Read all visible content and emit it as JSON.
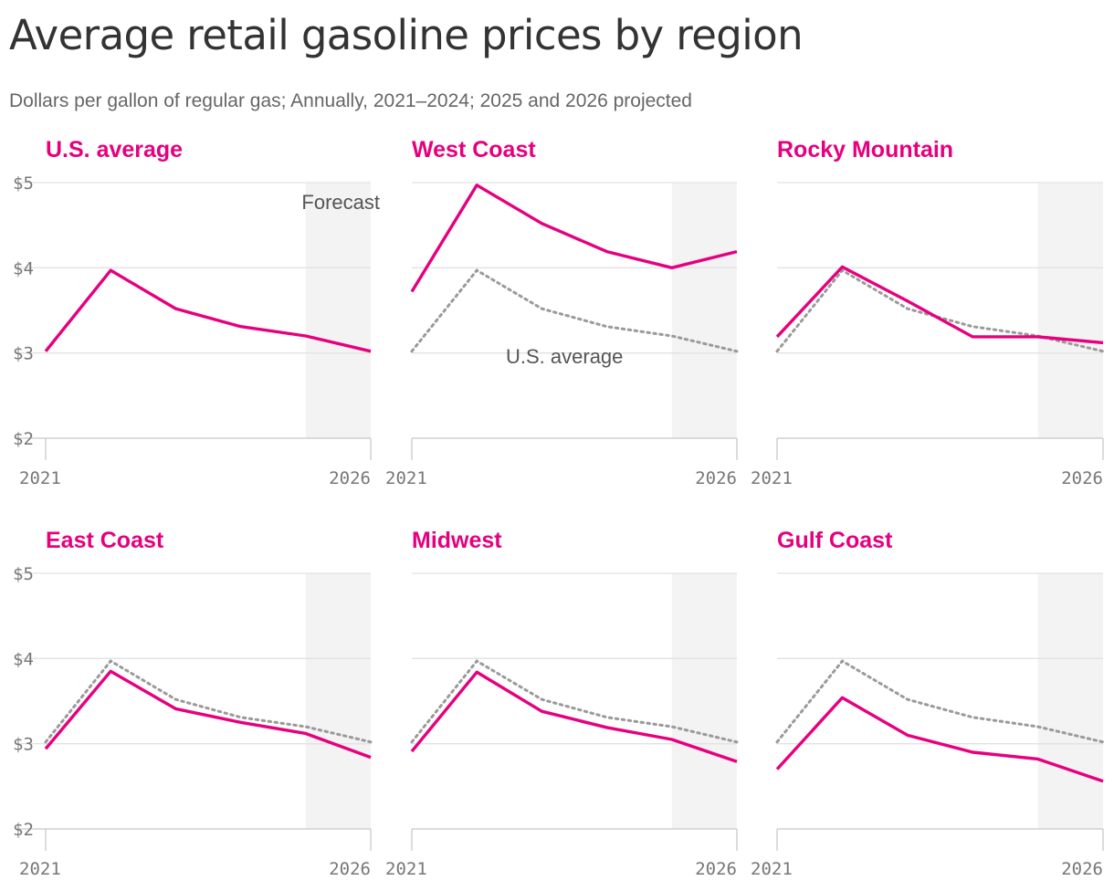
{
  "title": "Average retail gasoline prices by region",
  "subtitle": "Dollars per gallon of regular gas; Annually, 2021–2024; 2025 and 2026 projected",
  "colors": {
    "region": "#e6007e",
    "us_average": "#9a9a9a",
    "forecast_band": "#f3f3f3",
    "grid": "#e2e2e2"
  },
  "chart_data": {
    "type": "line",
    "x": [
      2021,
      2022,
      2023,
      2024,
      2025,
      2026
    ],
    "forecast_range": [
      2025,
      2026
    ],
    "forecast_label": "Forecast",
    "reference_label": "U.S. average",
    "ylim": [
      2,
      5
    ],
    "y_ticks": [
      {
        "value": 5,
        "label": "$5"
      },
      {
        "value": 4,
        "label": "$4"
      },
      {
        "value": 3,
        "label": "$3"
      },
      {
        "value": 2,
        "label": "$2"
      }
    ],
    "x_ticks": [
      {
        "value": 2021,
        "label": "2021"
      },
      {
        "value": 2026,
        "label": "2026"
      }
    ],
    "grid": true,
    "panels": [
      {
        "name": "U.S. average",
        "values": [
          3.02,
          3.97,
          3.52,
          3.31,
          3.2,
          3.02
        ]
      },
      {
        "name": "West Coast",
        "values": [
          3.72,
          4.97,
          4.52,
          4.19,
          4.0,
          4.19
        ]
      },
      {
        "name": "Rocky Mountain",
        "values": [
          3.19,
          4.01,
          3.61,
          3.19,
          3.19,
          3.12
        ]
      },
      {
        "name": "East Coast",
        "values": [
          2.94,
          3.85,
          3.41,
          3.25,
          3.12,
          2.84
        ]
      },
      {
        "name": "Midwest",
        "values": [
          2.91,
          3.84,
          3.38,
          3.19,
          3.05,
          2.79
        ]
      },
      {
        "name": "Gulf Coast",
        "values": [
          2.7,
          3.54,
          3.1,
          2.9,
          2.82,
          2.56
        ]
      }
    ],
    "us_average": [
      3.02,
      3.97,
      3.52,
      3.31,
      3.2,
      3.02
    ]
  }
}
